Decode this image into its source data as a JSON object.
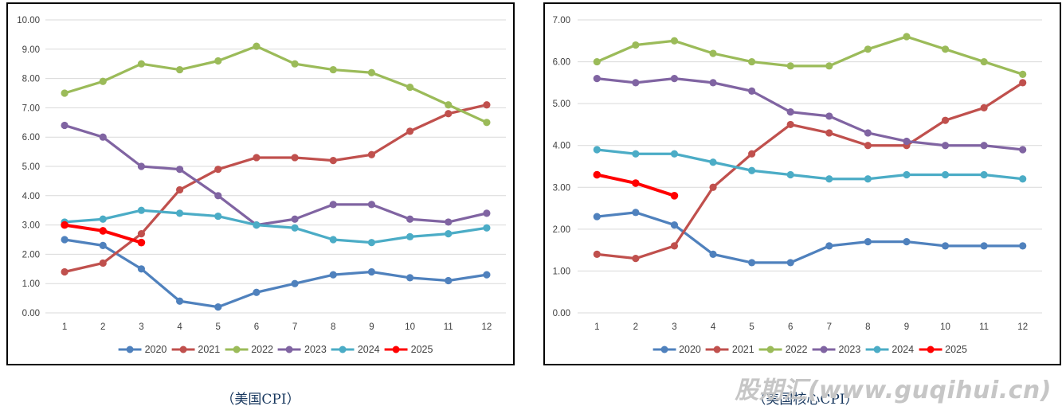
{
  "watermark": "股期汇(www.guqihui.cn)",
  "chart_data": [
    {
      "type": "line",
      "title": "（美国CPI）",
      "categories": [
        "1",
        "2",
        "3",
        "4",
        "5",
        "6",
        "7",
        "8",
        "9",
        "10",
        "11",
        "12"
      ],
      "xlabel": "",
      "ylabel": "",
      "ylim": [
        0,
        10
      ],
      "ytick_step": 1,
      "grid": true,
      "legend_position": "bottom",
      "series": [
        {
          "name": "2020",
          "color": "#4F81BD",
          "values": [
            2.5,
            2.3,
            1.5,
            0.4,
            0.2,
            0.7,
            1.0,
            1.3,
            1.4,
            1.2,
            1.1,
            1.3
          ]
        },
        {
          "name": "2021",
          "color": "#C0504D",
          "values": [
            1.4,
            1.7,
            2.7,
            4.2,
            4.9,
            5.3,
            5.3,
            5.2,
            5.4,
            6.2,
            6.8,
            7.1
          ]
        },
        {
          "name": "2022",
          "color": "#9BBB59",
          "values": [
            7.5,
            7.9,
            8.5,
            8.3,
            8.6,
            9.1,
            8.5,
            8.3,
            8.2,
            7.7,
            7.1,
            6.5
          ]
        },
        {
          "name": "2023",
          "color": "#8064A2",
          "values": [
            6.4,
            6.0,
            5.0,
            4.9,
            4.0,
            3.0,
            3.2,
            3.7,
            3.7,
            3.2,
            3.1,
            3.4
          ]
        },
        {
          "name": "2024",
          "color": "#4BACC6",
          "values": [
            3.1,
            3.2,
            3.5,
            3.4,
            3.3,
            3.0,
            2.9,
            2.5,
            2.4,
            2.6,
            2.7,
            2.9
          ]
        },
        {
          "name": "2025",
          "color": "#FF0000",
          "values": [
            3.0,
            2.8,
            2.4
          ]
        }
      ]
    },
    {
      "type": "line",
      "title": "（美国核心CPI）",
      "categories": [
        "1",
        "2",
        "3",
        "4",
        "5",
        "6",
        "7",
        "8",
        "9",
        "10",
        "11",
        "12"
      ],
      "xlabel": "",
      "ylabel": "",
      "ylim": [
        0,
        7
      ],
      "ytick_step": 1,
      "grid": true,
      "legend_position": "bottom",
      "series": [
        {
          "name": "2020",
          "color": "#4F81BD",
          "values": [
            2.3,
            2.4,
            2.1,
            1.4,
            1.2,
            1.2,
            1.6,
            1.7,
            1.7,
            1.6,
            1.6,
            1.6
          ]
        },
        {
          "name": "2021",
          "color": "#C0504D",
          "values": [
            1.4,
            1.3,
            1.6,
            3.0,
            3.8,
            4.5,
            4.3,
            4.0,
            4.0,
            4.6,
            4.9,
            5.5
          ]
        },
        {
          "name": "2022",
          "color": "#9BBB59",
          "values": [
            6.0,
            6.4,
            6.5,
            6.2,
            6.0,
            5.9,
            5.9,
            6.3,
            6.6,
            6.3,
            6.0,
            5.7
          ]
        },
        {
          "name": "2023",
          "color": "#8064A2",
          "values": [
            5.6,
            5.5,
            5.6,
            5.5,
            5.3,
            4.8,
            4.7,
            4.3,
            4.1,
            4.0,
            4.0,
            3.9
          ]
        },
        {
          "name": "2024",
          "color": "#4BACC6",
          "values": [
            3.9,
            3.8,
            3.8,
            3.6,
            3.4,
            3.3,
            3.2,
            3.2,
            3.3,
            3.3,
            3.3,
            3.2
          ]
        },
        {
          "name": "2025",
          "color": "#FF0000",
          "values": [
            3.3,
            3.1,
            2.8
          ]
        }
      ]
    }
  ]
}
